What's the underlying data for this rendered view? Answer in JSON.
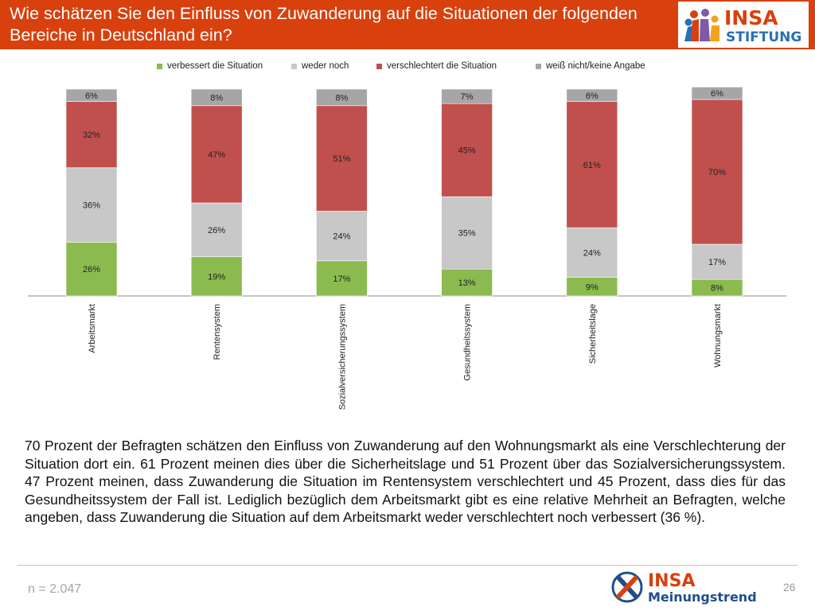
{
  "header": {
    "title": "Wie schätzen Sie den Einfluss von Zuwanderung auf die Situationen der folgenden Bereiche in Deutschland ein?",
    "logo_text_top": "INSA",
    "logo_text_bottom": "STIFTUNG"
  },
  "colors": {
    "header_bg": "#d8400d",
    "verbessert": "#8bbb4f",
    "weder": "#c8c8c8",
    "verschlechtert": "#c0504d",
    "weiss_nicht": "#a6a6a6"
  },
  "chart_data": {
    "type": "bar",
    "stacked": true,
    "categories": [
      "Arbeitsmarkt",
      "Rentensystem",
      "Sozialversicherungssystem",
      "Gesundheitssystem",
      "Sicherheitslage",
      "Wohnungsmarkt"
    ],
    "series": [
      {
        "name": "verbessert die Situation",
        "values": [
          26,
          19,
          17,
          13,
          9,
          8
        ]
      },
      {
        "name": "weder noch",
        "values": [
          36,
          26,
          24,
          35,
          24,
          17
        ]
      },
      {
        "name": "verschlechtert die Situation",
        "values": [
          32,
          47,
          51,
          45,
          61,
          70
        ]
      },
      {
        "name": "weiß nicht/keine Angabe",
        "values": [
          6,
          8,
          8,
          7,
          6,
          6
        ]
      }
    ],
    "value_suffix": "%",
    "legend_position": "top",
    "grid": false
  },
  "body_text": "70 Prozent der Befragten schätzen den Einfluss von Zuwanderung auf den Wohnungsmarkt als eine Verschlechterung der Situation dort ein. 61 Prozent meinen dies über die Sicherheitslage und 51 Prozent über das Sozialversicherungssystem. 47 Prozent meinen, dass Zuwanderung die Situation im Rentensystem verschlechtert und 45 Prozent, dass dies für das Gesundheitssystem der Fall ist. Lediglich bezüglich dem Arbeitsmarkt gibt es eine relative Mehrheit an Befragten, welche angeben, dass Zuwanderung die Situation auf dem Arbeitsmarkt weder verschlechtert noch verbessert (36 %).",
  "footer": {
    "sample_size": "n = 2.047",
    "logo_text_top": "INSA",
    "logo_text_bottom": "Meinungstrend",
    "page_number": "26"
  }
}
